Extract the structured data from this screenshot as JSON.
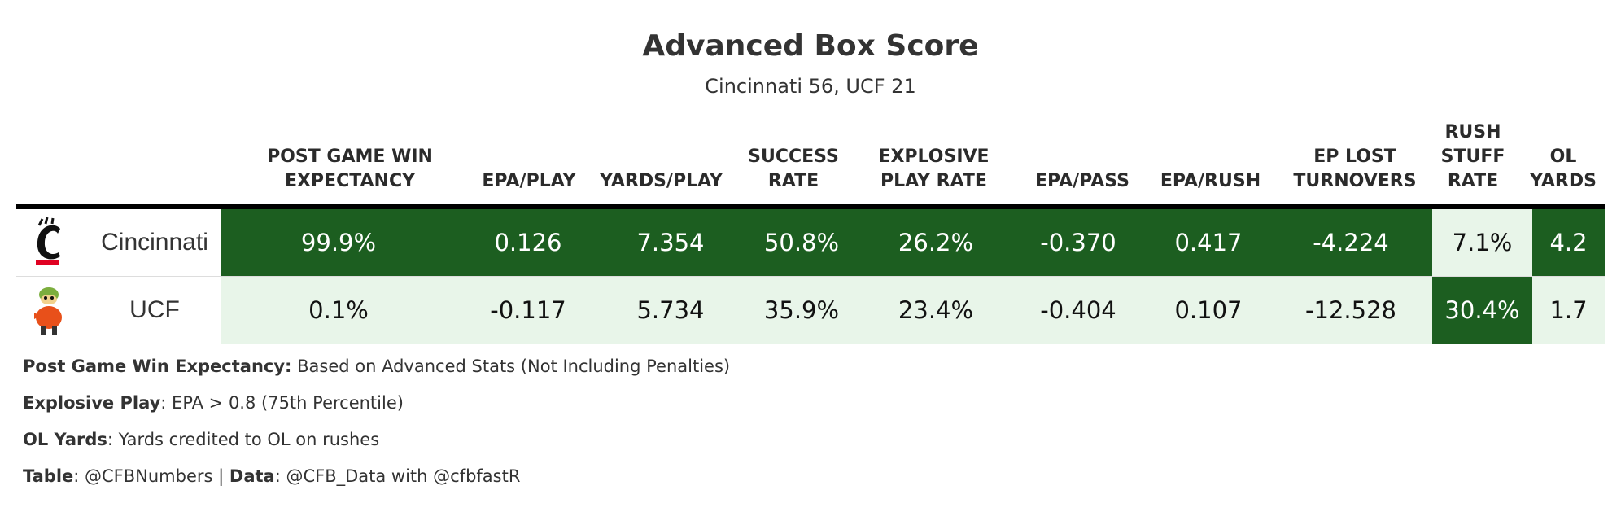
{
  "title": "Advanced Box Score",
  "subtitle": "Cincinnati 56, UCF 21",
  "colors": {
    "dark_green": "#1c5e20",
    "light_green": "#e8f5e9",
    "rule": "#000000"
  },
  "columns": [
    {
      "key": "wp",
      "line1": "POST GAME WIN",
      "line2": "EXPECTANCY"
    },
    {
      "key": "epa_play",
      "line1": "",
      "line2": "EPA/PLAY"
    },
    {
      "key": "ypp",
      "line1": "",
      "line2": "YARDS/PLAY"
    },
    {
      "key": "sr",
      "line1": "SUCCESS",
      "line2": "RATE"
    },
    {
      "key": "exp",
      "line1": "EXPLOSIVE",
      "line2": "PLAY RATE"
    },
    {
      "key": "epa_pass",
      "line1": "",
      "line2": "EPA/PASS"
    },
    {
      "key": "epa_rush",
      "line1": "",
      "line2": "EPA/RUSH"
    },
    {
      "key": "ep_lost",
      "line1": "EP LOST",
      "line2": "TURNOVERS"
    },
    {
      "key": "stuff",
      "line0": "RUSH",
      "line1": "STUFF",
      "line2": "RATE"
    },
    {
      "key": "ol",
      "line1": "OL",
      "line2": "YARDS"
    }
  ],
  "rows": [
    {
      "team": "Cincinnati",
      "logo_icon": "cincinnati-c-icon",
      "values": [
        "99.9%",
        "0.126",
        "7.354",
        "50.8%",
        "26.2%",
        "-0.370",
        "0.417",
        "-4.224",
        "7.1%",
        "4.2"
      ],
      "shade": [
        "dark",
        "dark",
        "dark",
        "dark",
        "dark",
        "dark",
        "dark",
        "dark",
        "light",
        "dark"
      ]
    },
    {
      "team": "UCF",
      "logo_icon": "ucf-knight-icon",
      "values": [
        "0.1%",
        "-0.117",
        "5.734",
        "35.9%",
        "23.4%",
        "-0.404",
        "0.107",
        "-12.528",
        "30.4%",
        "1.7"
      ],
      "shade": [
        "light",
        "light",
        "light",
        "light",
        "light",
        "light",
        "light",
        "light",
        "dark",
        "light"
      ]
    }
  ],
  "notes": [
    {
      "label": "Post Game Win Expectancy:",
      "text": " Based on Advanced Stats (Not Including Penalties)"
    },
    {
      "label": "Explosive Play",
      "text": ": EPA > 0.8 (75th Percentile)"
    },
    {
      "label": "OL Yards",
      "text": ": Yards credited to OL on rushes"
    },
    {
      "label": "Table",
      "text": ": @CFBNumbers | ",
      "label2": "Data",
      "text2": ": @CFB_Data with @cfbfastR"
    }
  ]
}
